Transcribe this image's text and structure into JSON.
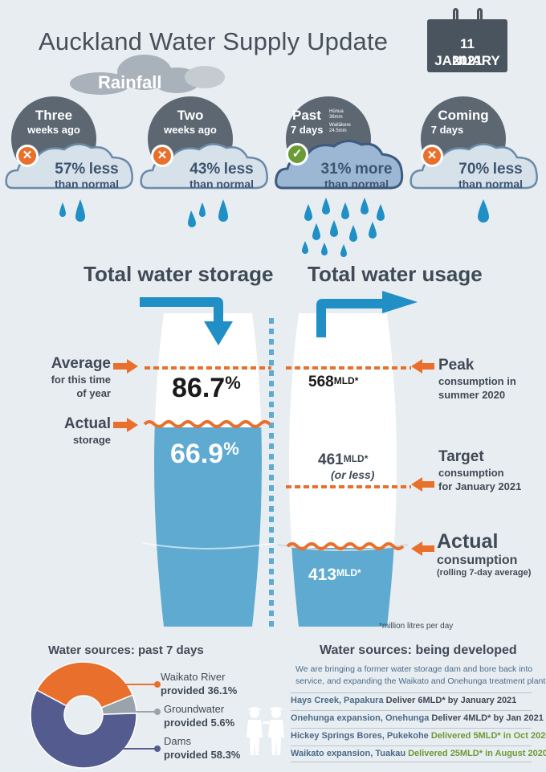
{
  "title": "Auckland Water Supply Update",
  "date": {
    "line1": "11 JANUARY",
    "line2": "2021"
  },
  "rainfall": {
    "label": "Rainfall",
    "periods": [
      {
        "line1": "Three",
        "line2": "weeks ago",
        "pct": "57%",
        "word": "less",
        "sub": "than normal",
        "status": "below"
      },
      {
        "line1": "Two",
        "line2": "weeks ago",
        "pct": "43%",
        "word": "less",
        "sub": "than normal",
        "status": "below"
      },
      {
        "line1": "Past",
        "line2": "7 days",
        "pct": "31%",
        "word": "more",
        "sub": "than normal",
        "status": "above",
        "notes": [
          {
            "name": "Hūnua",
            "val": "36mm"
          },
          {
            "name": "Waitākere",
            "val": "24.5mm"
          }
        ]
      },
      {
        "line1": "Coming",
        "line2": "7 days",
        "pct": "70%",
        "word": "less",
        "sub": "than normal",
        "status": "below"
      }
    ]
  },
  "storage": {
    "heading": "Total water storage",
    "average_label": "Average",
    "average_sub": [
      "for this time",
      "of year"
    ],
    "average_value": "86.7",
    "actual_label": "Actual",
    "actual_sub": "storage",
    "actual_value": "66.9",
    "unit": "%"
  },
  "usage": {
    "heading": "Total water usage",
    "peak_value": "568",
    "peak_label": "Peak",
    "peak_sub": [
      "consumption in",
      "summer 2020"
    ],
    "target_value": "461",
    "target_note": "(or less)",
    "target_label": "Target",
    "target_sub": [
      "consumption",
      "for January 2021"
    ],
    "actual_value": "413",
    "actual_label": "Actual",
    "actual_sub": "consumption",
    "actual_note": "(rolling 7-day average)",
    "unit": "MLD",
    "unit_mark": "*",
    "footnote": "*million litres per day"
  },
  "sources_past": {
    "title": "Water sources: past 7 days",
    "items": [
      {
        "name": "Waikato River",
        "provided": "provided 36.1%",
        "value": 36.1,
        "color": "#e8702c"
      },
      {
        "name": "Groundwater",
        "provided": "provided 5.6%",
        "value": 5.6,
        "color": "#9aa3ab"
      },
      {
        "name": "Dams",
        "provided": "provided 58.3%",
        "value": 58.3,
        "color": "#545c8f"
      }
    ]
  },
  "sources_dev": {
    "title": "Water sources: being developed",
    "intro": [
      "We are bringing a former water storage dam and bore back into",
      "service, and expanding the Waikato and Onehunga treatment plants."
    ],
    "rows": [
      {
        "place": "Hays Creek, Papakura",
        "action": "Deliver 6MLD*",
        "when": "by January 2021",
        "done": false
      },
      {
        "place": "Onehunga expansion, Onehunga",
        "action": "Deliver 4MLD*",
        "when": "by Jan 2021",
        "done": false
      },
      {
        "place": "Hickey Springs Bores, Pukekohe",
        "action": "Delivered 5MLD*",
        "when": "in Oct 2020",
        "done": true
      },
      {
        "place": "Waikato expansion, Tuakau",
        "action": "Delivered 25MLD*",
        "when": "in August 2020",
        "done": true
      }
    ]
  },
  "colors": {
    "orange": "#e8702c",
    "water": "#5eaad1",
    "arrow": "#2d8fc6",
    "green": "#6b9b36",
    "dark": "#3f4a55"
  }
}
